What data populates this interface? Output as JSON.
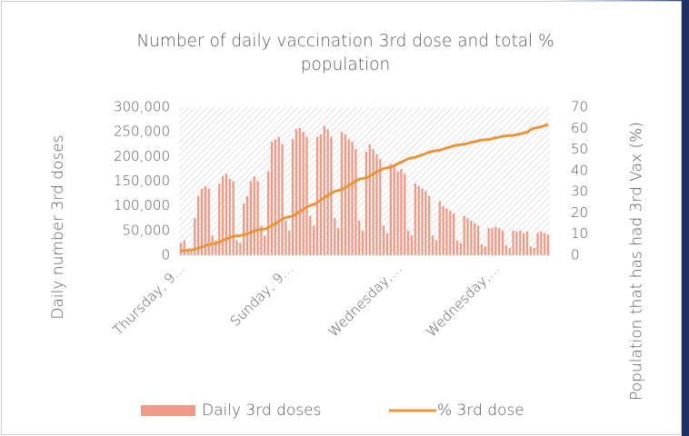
{
  "chart_data": {
    "type": "bar",
    "title": "Number of daily vaccination 3rd dose and total % population",
    "ylabel": "Daily number 3rd doses",
    "y2label": "Population that has had 3rd Vax (%)",
    "categories": [
      "Thursday, 9…",
      null,
      null,
      null,
      null,
      null,
      null,
      null,
      null,
      null,
      null,
      null,
      null,
      null,
      null,
      null,
      null,
      null,
      null,
      null,
      null,
      null,
      null,
      null,
      null,
      null,
      null,
      null,
      null,
      null,
      null,
      "Sunday, 9…",
      null,
      null,
      null,
      null,
      null,
      null,
      null,
      null,
      null,
      null,
      null,
      null,
      null,
      null,
      null,
      null,
      null,
      null,
      null,
      null,
      null,
      null,
      null,
      null,
      null,
      null,
      null,
      null,
      null,
      null,
      "Wednesday,…",
      null,
      null,
      null,
      null,
      null,
      null,
      null,
      null,
      null,
      null,
      null,
      null,
      null,
      null,
      null,
      null,
      null,
      null,
      null,
      null,
      null,
      null,
      null,
      null,
      null,
      null,
      null,
      "Wednesday,…",
      null,
      null,
      null,
      null,
      null,
      null,
      null,
      null,
      null,
      null,
      null,
      null,
      null,
      null,
      null
    ],
    "series": [
      {
        "name": "Daily 3rd doses",
        "type": "bar",
        "color": "#ee9a86",
        "values": [
          25000,
          30000,
          10000,
          8000,
          75000,
          120000,
          135000,
          140000,
          135000,
          40000,
          30000,
          145000,
          160000,
          165000,
          155000,
          150000,
          30000,
          25000,
          105000,
          120000,
          150000,
          160000,
          150000,
          60000,
          40000,
          170000,
          230000,
          235000,
          240000,
          225000,
          70000,
          50000,
          235000,
          255000,
          258000,
          250000,
          240000,
          80000,
          60000,
          240000,
          245000,
          262000,
          255000,
          240000,
          75000,
          55000,
          250000,
          245000,
          235000,
          230000,
          215000,
          70000,
          50000,
          210000,
          225000,
          215000,
          205000,
          195000,
          60000,
          45000,
          185000,
          180000,
          170000,
          175000,
          165000,
          50000,
          40000,
          145000,
          140000,
          135000,
          130000,
          120000,
          40000,
          30000,
          110000,
          100000,
          95000,
          90000,
          85000,
          30000,
          25000,
          80000,
          75000,
          70000,
          65000,
          60000,
          22000,
          18000,
          55000,
          55000,
          58000,
          55000,
          50000,
          20000,
          15000,
          50000,
          48000,
          50000,
          45000,
          48000,
          18000,
          15000,
          45000,
          48000,
          45000,
          42000
        ]
      },
      {
        "name": "% 3rd dose",
        "type": "line",
        "axis": "y2",
        "color": "#e8963c",
        "values": [
          2,
          2.2,
          2.4,
          2.5,
          2.8,
          3.3,
          3.9,
          4.5,
          5.1,
          5.4,
          5.6,
          6.2,
          6.9,
          7.6,
          8.3,
          8.9,
          9.1,
          9.3,
          9.7,
          10.2,
          10.8,
          11.4,
          12,
          12.2,
          12.4,
          13.1,
          14,
          15,
          16,
          17,
          17.8,
          18.2,
          18.5,
          19.5,
          20.6,
          21.7,
          22.8,
          23.5,
          24,
          25,
          26.1,
          27.2,
          28.3,
          29.3,
          30.2,
          30.6,
          31,
          32,
          33,
          34,
          35,
          36,
          36.3,
          36.6,
          37.5,
          38.4,
          39.3,
          40.2,
          41,
          41.3,
          41.6,
          42.4,
          43.2,
          44,
          44.8,
          45.6,
          46,
          46.3,
          46.9,
          47.5,
          48.1,
          48.7,
          49.2,
          49.4,
          49.6,
          50.2,
          50.7,
          51.2,
          51.7,
          52.1,
          52.3,
          52.5,
          52.9,
          53.3,
          53.7,
          54.1,
          54.5,
          54.6,
          54.7,
          55.1,
          55.5,
          55.9,
          56.2,
          56.5,
          56.6,
          56.7,
          57,
          57.4,
          57.8,
          58.1,
          59.5,
          60,
          60.4,
          60.8,
          61.3,
          61.8
        ]
      }
    ],
    "ylim": [
      0,
      300000
    ],
    "yticks": [
      {
        "value": 0,
        "label": "0"
      },
      {
        "value": 50000,
        "label": "50,000"
      },
      {
        "value": 100000,
        "label": "100,000"
      },
      {
        "value": 150000,
        "label": "150,000"
      },
      {
        "value": 200000,
        "label": "200,000"
      },
      {
        "value": 250000,
        "label": "250,000"
      },
      {
        "value": 300000,
        "label": "300,000"
      }
    ],
    "y2lim": [
      0,
      70
    ],
    "y2ticks": [
      0,
      10,
      20,
      30,
      40,
      50,
      60,
      70
    ],
    "legend": "bottom"
  }
}
